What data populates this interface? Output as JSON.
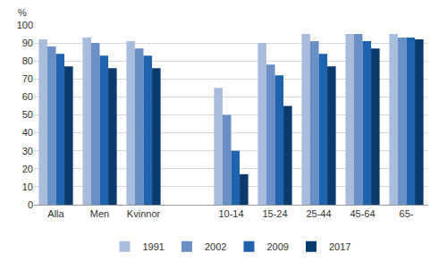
{
  "chart_data": {
    "type": "bar",
    "ylabel": "%",
    "categories": [
      "Alla",
      "Men",
      "Kvinnor",
      null,
      "10-14",
      "15-24",
      "25-44",
      "45-64",
      "65-"
    ],
    "series": [
      {
        "name": "1991",
        "color": "#a9bcdc",
        "values": [
          92,
          93,
          91,
          null,
          65,
          90,
          95,
          95,
          95
        ]
      },
      {
        "name": "2002",
        "color": "#6a8fc6",
        "values": [
          88,
          90,
          87,
          null,
          50,
          78,
          91,
          95,
          93
        ]
      },
      {
        "name": "2009",
        "color": "#1f62ad",
        "values": [
          84,
          83,
          83,
          null,
          30,
          72,
          84,
          91,
          93
        ]
      },
      {
        "name": "2017",
        "color": "#0b3b6e",
        "values": [
          77,
          76,
          76,
          null,
          17,
          55,
          77,
          87,
          92
        ]
      }
    ],
    "ylim": [
      0,
      100
    ],
    "yticks": [
      0,
      10,
      20,
      30,
      40,
      50,
      60,
      70,
      80,
      90,
      100
    ],
    "grid": true,
    "legend": "bottom"
  }
}
